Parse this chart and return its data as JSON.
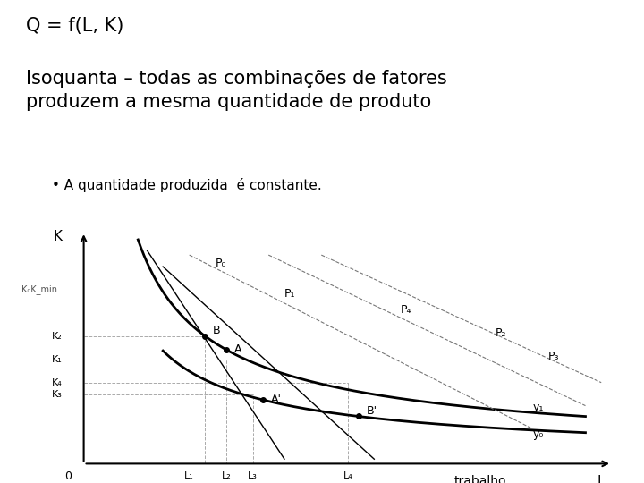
{
  "title_line1": "Q = f(L, K)",
  "title_line2": "Isoquanta – todas as combinações de fatores\nproduzem a mesma quantidade de produto",
  "bullet": "A quantidade produzida  é constante.",
  "bg_color": "#ffffff",
  "axis_color": "#000000",
  "curve_color": "#000000",
  "grid_color": "#cccccc",
  "line_color": "#555555",
  "xlabel": "trabalho",
  "ylabel": "K",
  "xaxis_label": "L",
  "y0_label": "y₀",
  "y1_label": "y₁",
  "P0_label": "P₀",
  "P1_label": "P₁",
  "P2_label": "P₂",
  "P3_label": "P₃",
  "P4_label": "P₄",
  "K_labels": [
    "K₂",
    "K₁",
    "K₄",
    "K₃"
  ],
  "L_labels": [
    "L₁",
    "L₂",
    "L₃",
    "L₄"
  ],
  "point_A_label": "A",
  "point_B_label": "B",
  "point_Ap_label": "A'",
  "point_Bp_label": "B'"
}
